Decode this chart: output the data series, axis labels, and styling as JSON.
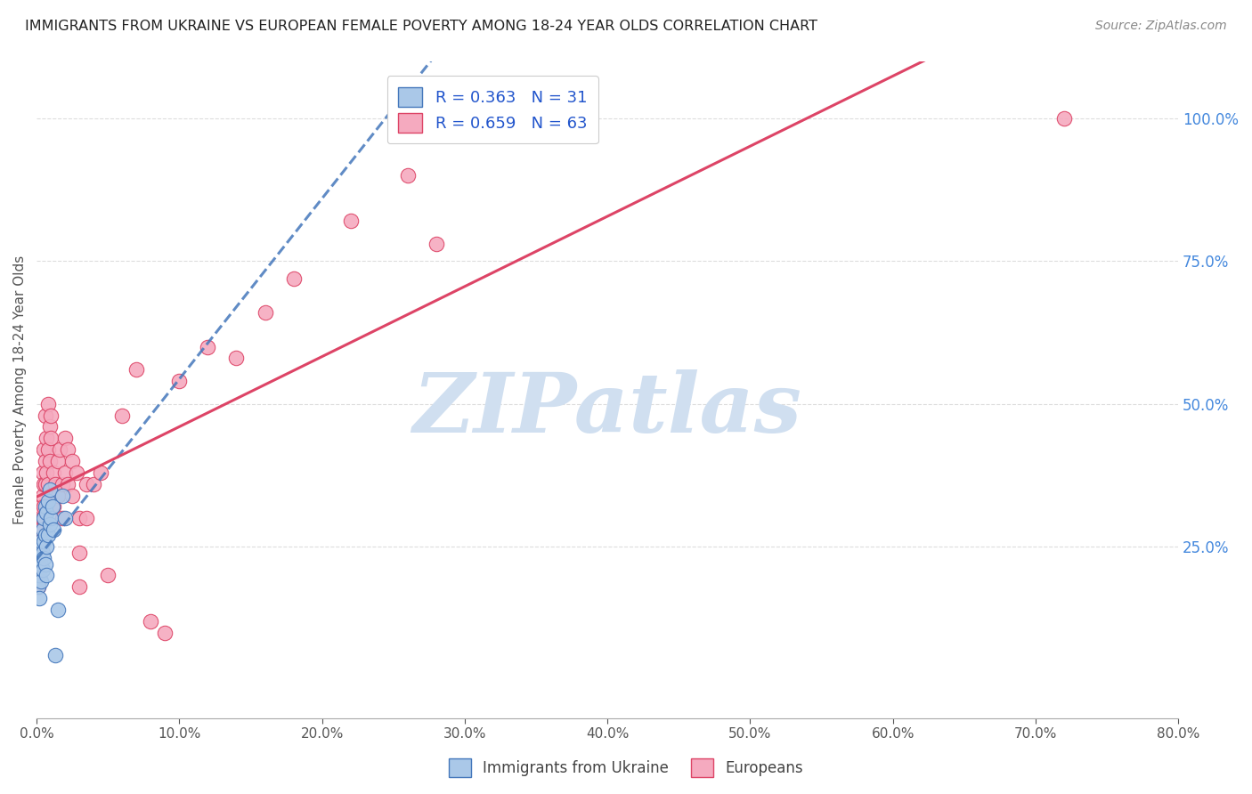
{
  "title": "IMMIGRANTS FROM UKRAINE VS EUROPEAN FEMALE POVERTY AMONG 18-24 YEAR OLDS CORRELATION CHART",
  "source": "Source: ZipAtlas.com",
  "ylabel": "Female Poverty Among 18-24 Year Olds",
  "right_yticks": [
    "100.0%",
    "75.0%",
    "50.0%",
    "25.0%"
  ],
  "right_ytick_vals": [
    1.0,
    0.75,
    0.5,
    0.25
  ],
  "ukraine_color": "#aac8e8",
  "european_color": "#f5aabf",
  "ukraine_line_color": "#4477bb",
  "european_line_color": "#dd4466",
  "watermark_text": "ZIPatlas",
  "watermark_color": "#d0dff0",
  "ukraine_scatter_x": [
    0.001,
    0.001,
    0.002,
    0.002,
    0.002,
    0.003,
    0.003,
    0.003,
    0.004,
    0.004,
    0.004,
    0.005,
    0.005,
    0.005,
    0.006,
    0.006,
    0.006,
    0.007,
    0.007,
    0.007,
    0.008,
    0.008,
    0.009,
    0.009,
    0.01,
    0.011,
    0.012,
    0.013,
    0.015,
    0.018,
    0.02
  ],
  "ukraine_scatter_y": [
    0.22,
    0.18,
    0.24,
    0.2,
    0.16,
    0.26,
    0.22,
    0.19,
    0.28,
    0.24,
    0.21,
    0.3,
    0.26,
    0.23,
    0.32,
    0.27,
    0.22,
    0.31,
    0.25,
    0.2,
    0.33,
    0.27,
    0.35,
    0.29,
    0.3,
    0.32,
    0.28,
    0.06,
    0.14,
    0.34,
    0.3
  ],
  "european_scatter_x": [
    0.001,
    0.001,
    0.001,
    0.002,
    0.002,
    0.002,
    0.003,
    0.003,
    0.003,
    0.004,
    0.004,
    0.004,
    0.005,
    0.005,
    0.005,
    0.006,
    0.006,
    0.006,
    0.007,
    0.007,
    0.008,
    0.008,
    0.008,
    0.009,
    0.009,
    0.01,
    0.01,
    0.012,
    0.012,
    0.013,
    0.015,
    0.015,
    0.016,
    0.018,
    0.018,
    0.02,
    0.02,
    0.022,
    0.022,
    0.025,
    0.025,
    0.028,
    0.03,
    0.03,
    0.03,
    0.035,
    0.035,
    0.04,
    0.045,
    0.05,
    0.06,
    0.07,
    0.08,
    0.09,
    0.1,
    0.12,
    0.14,
    0.16,
    0.18,
    0.22,
    0.26,
    0.28,
    0.72
  ],
  "european_scatter_y": [
    0.22,
    0.2,
    0.18,
    0.28,
    0.24,
    0.2,
    0.32,
    0.28,
    0.24,
    0.38,
    0.34,
    0.3,
    0.42,
    0.36,
    0.32,
    0.48,
    0.4,
    0.36,
    0.44,
    0.38,
    0.5,
    0.42,
    0.36,
    0.46,
    0.4,
    0.48,
    0.44,
    0.38,
    0.32,
    0.36,
    0.4,
    0.34,
    0.42,
    0.36,
    0.3,
    0.44,
    0.38,
    0.42,
    0.36,
    0.4,
    0.34,
    0.38,
    0.3,
    0.24,
    0.18,
    0.36,
    0.3,
    0.36,
    0.38,
    0.2,
    0.48,
    0.56,
    0.12,
    0.1,
    0.54,
    0.6,
    0.58,
    0.66,
    0.72,
    0.82,
    0.9,
    0.78,
    1.0
  ],
  "xlim": [
    0.0,
    0.8
  ],
  "ylim": [
    -0.05,
    1.1
  ],
  "background_color": "#ffffff",
  "grid_color": "#dddddd",
  "title_color": "#222222",
  "source_color": "#888888",
  "right_axis_color": "#4488dd",
  "axis_color": "#aaaaaa"
}
